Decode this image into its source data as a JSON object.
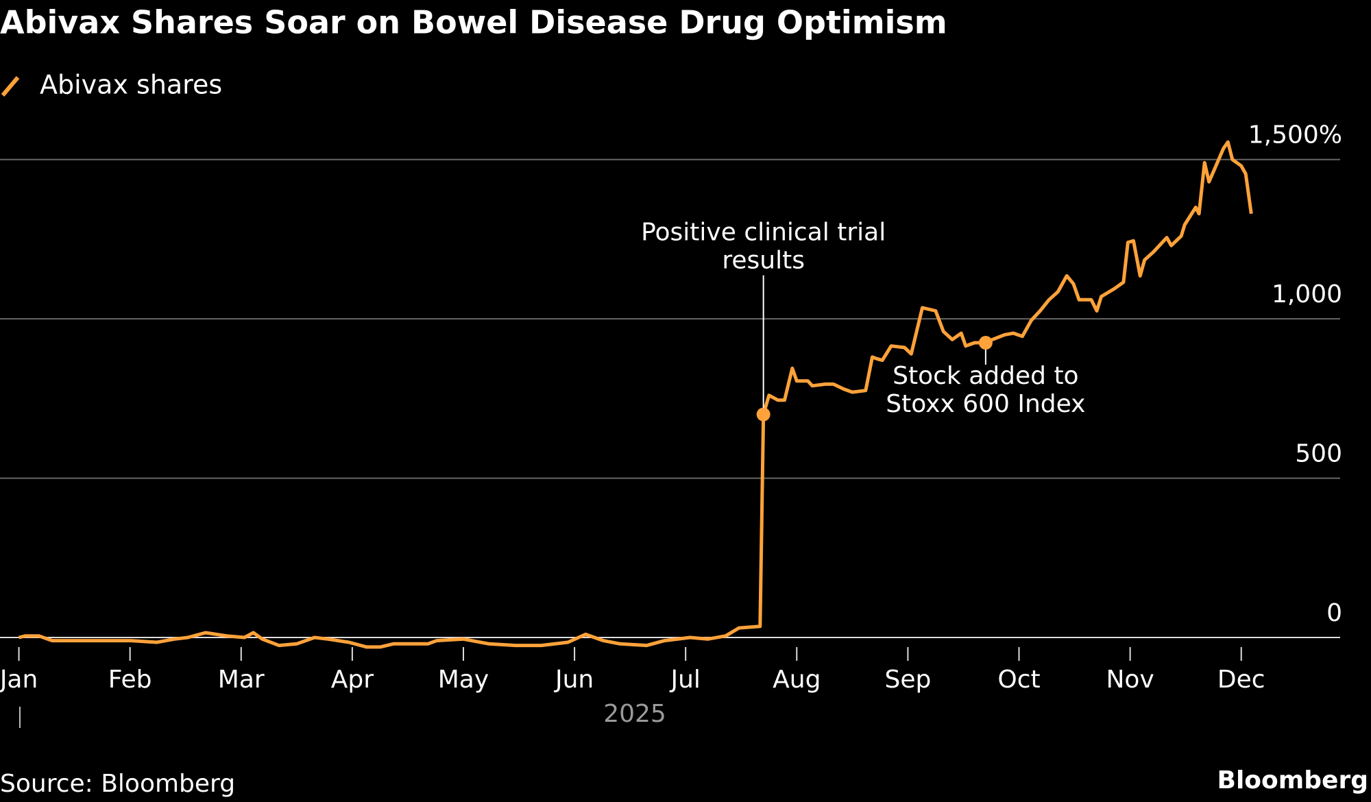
{
  "chart_data": {
    "type": "line",
    "title": "Abivax Shares Soar on Bowel Disease Drug Optimism",
    "x_axis_label": "2025",
    "source": "Source: Bloomberg",
    "brand": "Bloomberg",
    "grid": true,
    "xlim": [
      -0.17,
      11.89
    ],
    "xticks": [
      {
        "value": 0,
        "label": "Jan"
      },
      {
        "value": 1,
        "label": "Feb"
      },
      {
        "value": 2,
        "label": "Mar"
      },
      {
        "value": 3,
        "label": "Apr"
      },
      {
        "value": 4,
        "label": "May"
      },
      {
        "value": 5,
        "label": "Jun"
      },
      {
        "value": 6,
        "label": "Jul"
      },
      {
        "value": 7,
        "label": "Aug"
      },
      {
        "value": 8,
        "label": "Sep"
      },
      {
        "value": 9,
        "label": "Oct"
      },
      {
        "value": 10,
        "label": "Nov"
      },
      {
        "value": 11,
        "label": "Dec"
      }
    ],
    "ylim": [
      0,
      1650
    ],
    "yticks": [
      0,
      500,
      {
        "value": 1000,
        "label": "1,000"
      },
      {
        "value": 1500,
        "label": "1,500%"
      }
    ],
    "series": [
      {
        "name": "Abivax shares",
        "color": "#ffa23a",
        "x": [
          0,
          0.06,
          0.18,
          0.3,
          0.54,
          0.77,
          1.01,
          1.24,
          1.4,
          1.52,
          1.68,
          1.87,
          2.03,
          2.11,
          2.19,
          2.34,
          2.5,
          2.66,
          2.78,
          2.97,
          3.13,
          3.25,
          3.37,
          3.68,
          3.76,
          4.0,
          4.23,
          4.47,
          4.7,
          4.94,
          5.1,
          5.26,
          5.41,
          5.65,
          5.81,
          6.04,
          6.2,
          6.36,
          6.48,
          6.67,
          6.7,
          6.75,
          6.83,
          6.89,
          6.96,
          7.0,
          7.1,
          7.14,
          7.26,
          7.33,
          7.42,
          7.5,
          7.62,
          7.68,
          7.72,
          7.77,
          7.85,
          7.97,
          8.03,
          8.13,
          8.25,
          8.32,
          8.4,
          8.48,
          8.52,
          8.6,
          8.7,
          8.76,
          8.87,
          8.95,
          9.03,
          9.11,
          9.19,
          9.27,
          9.35,
          9.43,
          9.49,
          9.54,
          9.65,
          9.7,
          9.74,
          9.86,
          9.94,
          9.98,
          10.03,
          10.09,
          10.13,
          10.21,
          10.33,
          10.37,
          10.46,
          10.49,
          10.59,
          10.62,
          10.67,
          10.71,
          10.84,
          10.88,
          10.92,
          11.0,
          11.04,
          11.09
        ],
        "values": [
          0,
          5,
          5,
          -10,
          -10,
          -10,
          -10,
          -15,
          -5,
          0,
          15,
          5,
          0,
          15,
          -5,
          -25,
          -20,
          0,
          -5,
          -15,
          -30,
          -30,
          -20,
          -20,
          -10,
          -5,
          -20,
          -25,
          -25,
          -15,
          10,
          -10,
          -20,
          -25,
          -10,
          0,
          -5,
          5,
          30,
          35,
          700,
          760,
          745,
          745,
          845,
          805,
          805,
          790,
          795,
          795,
          780,
          770,
          775,
          880,
          875,
          870,
          915,
          910,
          890,
          1035,
          1025,
          960,
          935,
          955,
          915,
          925,
          925,
          935,
          950,
          955,
          945,
          995,
          1025,
          1060,
          1085,
          1135,
          1110,
          1060,
          1060,
          1025,
          1070,
          1095,
          1115,
          1240,
          1245,
          1135,
          1185,
          1210,
          1255,
          1230,
          1260,
          1295,
          1350,
          1330,
          1490,
          1430,
          1535,
          1555,
          1500,
          1480,
          1455,
          1330
        ]
      }
    ],
    "annotations": [
      {
        "text": [
          "Positive clinical trial",
          "results"
        ],
        "x": 6.7,
        "y": 700
      },
      {
        "text": [
          "Stock added to",
          "Stoxx 600 Index"
        ],
        "x": 8.7,
        "y": 925
      }
    ]
  }
}
